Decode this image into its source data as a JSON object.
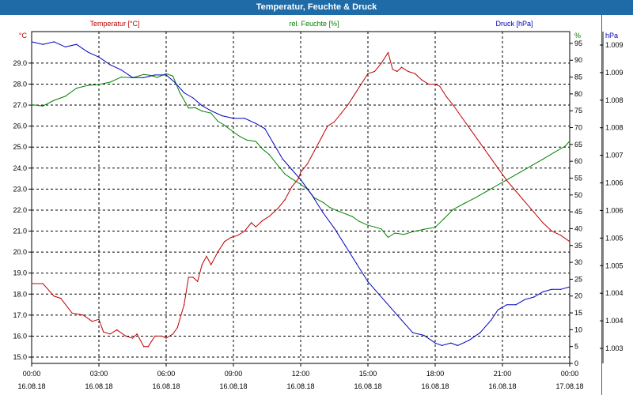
{
  "window": {
    "title": "Temperatur, Feuchte & Druck"
  },
  "colors": {
    "temperature": "#c00000",
    "humidity": "#008000",
    "pressure": "#0000c0",
    "title_bg": "#1e6ba8"
  },
  "chart_data": {
    "type": "line",
    "title": "Temperatur, Feuchte & Druck",
    "grid": true,
    "x_ticks": [
      {
        "time": "00:00",
        "date": "16.08.18"
      },
      {
        "time": "03:00",
        "date": "16.08.18"
      },
      {
        "time": "06:00",
        "date": "16.08.18"
      },
      {
        "time": "09:00",
        "date": "16.08.18"
      },
      {
        "time": "12:00",
        "date": "16.08.18"
      },
      {
        "time": "15:00",
        "date": "16.08.18"
      },
      {
        "time": "18:00",
        "date": "16.08.18"
      },
      {
        "time": "21:00",
        "date": "16.08.18"
      },
      {
        "time": "00:00",
        "date": "17.08.18"
      }
    ],
    "x_range_hours": [
      0,
      24
    ],
    "axes": {
      "temperature": {
        "label": "Temperatur [°C]",
        "unit": "°C",
        "ylim": [
          14.7,
          30.5
        ],
        "ticks": [
          "15.0",
          "16.0",
          "17.0",
          "18.0",
          "19.0",
          "20.0",
          "21.0",
          "22.0",
          "23.0",
          "24.0",
          "25.0",
          "26.0",
          "27.0",
          "28.0",
          "29.0"
        ]
      },
      "humidity": {
        "label": "rel. Feuchte [%]",
        "unit": "%",
        "ylim": [
          0,
          98.5
        ],
        "ticks": [
          "0",
          "5",
          "10",
          "15",
          "20",
          "25",
          "30",
          "35",
          "40",
          "45",
          "50",
          "55",
          "60",
          "65",
          "70",
          "75",
          "80",
          "85",
          "90",
          "95"
        ]
      },
      "pressure": {
        "label": "Druck [hPa]",
        "unit": "hPa",
        "ylim": [
          1002.7,
          1009.2
        ],
        "ticks": [
          "1.003",
          "1.004",
          "1.004",
          "1.005",
          "1.005",
          "1.006",
          "1.006",
          "1.007",
          "1.008",
          "1.008",
          "1.009",
          "1.009"
        ]
      }
    },
    "series": [
      {
        "name": "Temperatur [°C]",
        "axis": "temperature",
        "color": "#c00000",
        "points": [
          [
            0,
            18.5
          ],
          [
            0.5,
            18.5
          ],
          [
            1,
            17.9
          ],
          [
            1.3,
            17.8
          ],
          [
            1.8,
            17.1
          ],
          [
            2.3,
            17.0
          ],
          [
            2.7,
            16.7
          ],
          [
            3.0,
            16.8
          ],
          [
            3.2,
            16.2
          ],
          [
            3.5,
            16.1
          ],
          [
            3.8,
            16.3
          ],
          [
            4.2,
            16.0
          ],
          [
            4.5,
            15.9
          ],
          [
            4.7,
            16.1
          ],
          [
            5.0,
            15.5
          ],
          [
            5.2,
            15.5
          ],
          [
            5.5,
            16.0
          ],
          [
            5.8,
            16.0
          ],
          [
            6.0,
            15.9
          ],
          [
            6.3,
            16.1
          ],
          [
            6.5,
            16.4
          ],
          [
            6.8,
            17.5
          ],
          [
            7.0,
            18.8
          ],
          [
            7.2,
            18.8
          ],
          [
            7.4,
            18.6
          ],
          [
            7.6,
            19.4
          ],
          [
            7.8,
            19.8
          ],
          [
            8.0,
            19.4
          ],
          [
            8.3,
            20.0
          ],
          [
            8.6,
            20.5
          ],
          [
            8.9,
            20.7
          ],
          [
            9.2,
            20.8
          ],
          [
            9.5,
            21.0
          ],
          [
            9.8,
            21.4
          ],
          [
            10.0,
            21.2
          ],
          [
            10.3,
            21.5
          ],
          [
            10.6,
            21.7
          ],
          [
            10.8,
            21.9
          ],
          [
            11.0,
            22.1
          ],
          [
            11.3,
            22.5
          ],
          [
            11.6,
            23.1
          ],
          [
            11.9,
            23.5
          ],
          [
            12.0,
            23.8
          ],
          [
            12.3,
            24.2
          ],
          [
            12.6,
            24.8
          ],
          [
            12.9,
            25.4
          ],
          [
            13.2,
            26.0
          ],
          [
            13.5,
            26.2
          ],
          [
            13.8,
            26.6
          ],
          [
            14.1,
            27.0
          ],
          [
            14.4,
            27.5
          ],
          [
            14.7,
            28.0
          ],
          [
            15.0,
            28.5
          ],
          [
            15.3,
            28.6
          ],
          [
            15.6,
            29.0
          ],
          [
            15.9,
            29.5
          ],
          [
            16.1,
            28.7
          ],
          [
            16.3,
            28.6
          ],
          [
            16.5,
            28.8
          ],
          [
            16.8,
            28.6
          ],
          [
            17.1,
            28.5
          ],
          [
            17.4,
            28.2
          ],
          [
            17.7,
            28.0
          ],
          [
            18.0,
            28.0
          ],
          [
            18.2,
            27.9
          ],
          [
            18.5,
            27.4
          ],
          [
            18.8,
            27.0
          ],
          [
            19.2,
            26.4
          ],
          [
            19.6,
            25.8
          ],
          [
            20.0,
            25.2
          ],
          [
            20.4,
            24.6
          ],
          [
            20.8,
            24.0
          ],
          [
            21.2,
            23.4
          ],
          [
            21.6,
            22.9
          ],
          [
            22.0,
            22.4
          ],
          [
            22.4,
            21.9
          ],
          [
            22.8,
            21.4
          ],
          [
            23.2,
            21.0
          ],
          [
            23.6,
            20.8
          ],
          [
            24.0,
            20.5
          ]
        ]
      },
      {
        "name": "rel. Feuchte [%]",
        "axis": "humidity",
        "color": "#008000",
        "points": [
          [
            0,
            76.8
          ],
          [
            0.5,
            76.4
          ],
          [
            1.0,
            78.1
          ],
          [
            1.5,
            79.3
          ],
          [
            2.0,
            81.7
          ],
          [
            2.5,
            82.5
          ],
          [
            3.0,
            82.8
          ],
          [
            3.5,
            83.5
          ],
          [
            4.0,
            85.0
          ],
          [
            4.5,
            84.8
          ],
          [
            5.0,
            85.8
          ],
          [
            5.3,
            85.5
          ],
          [
            5.6,
            84.9
          ],
          [
            6.0,
            86.0
          ],
          [
            6.3,
            85.3
          ],
          [
            6.6,
            80.5
          ],
          [
            7.0,
            75.8
          ],
          [
            7.3,
            75.9
          ],
          [
            7.6,
            74.9
          ],
          [
            8.0,
            74.3
          ],
          [
            8.3,
            71.9
          ],
          [
            8.6,
            70.7
          ],
          [
            9.0,
            68.7
          ],
          [
            9.3,
            67.3
          ],
          [
            9.6,
            66.3
          ],
          [
            10.0,
            65.9
          ],
          [
            10.3,
            63.6
          ],
          [
            10.6,
            62.0
          ],
          [
            11.0,
            58.6
          ],
          [
            11.3,
            56.2
          ],
          [
            11.6,
            54.8
          ],
          [
            12.0,
            53.2
          ],
          [
            12.3,
            51.7
          ],
          [
            12.6,
            49.2
          ],
          [
            13.0,
            47.8
          ],
          [
            13.3,
            46.3
          ],
          [
            13.6,
            45.4
          ],
          [
            14.0,
            44.4
          ],
          [
            14.3,
            43.6
          ],
          [
            14.6,
            42.2
          ],
          [
            15.0,
            41.0
          ],
          [
            15.3,
            40.5
          ],
          [
            15.6,
            39.9
          ],
          [
            15.9,
            37.4
          ],
          [
            16.2,
            38.7
          ],
          [
            16.6,
            38.3
          ],
          [
            17.0,
            39.1
          ],
          [
            17.5,
            39.8
          ],
          [
            18.0,
            40.4
          ],
          [
            18.4,
            43.0
          ],
          [
            18.8,
            45.7
          ],
          [
            19.3,
            47.5
          ],
          [
            19.8,
            49.2
          ],
          [
            20.3,
            51.1
          ],
          [
            20.8,
            53.0
          ],
          [
            21.3,
            54.9
          ],
          [
            21.8,
            56.8
          ],
          [
            22.3,
            58.7
          ],
          [
            22.8,
            60.6
          ],
          [
            23.3,
            62.6
          ],
          [
            23.8,
            64.5
          ],
          [
            24.0,
            66.0
          ]
        ]
      },
      {
        "name": "Druck [hPa]",
        "axis": "pressure",
        "color": "#0000c0",
        "points": [
          [
            0,
            1009.0
          ],
          [
            0.5,
            1008.95
          ],
          [
            1.0,
            1009.0
          ],
          [
            1.5,
            1008.9
          ],
          [
            2.0,
            1008.95
          ],
          [
            2.5,
            1008.8
          ],
          [
            3.0,
            1008.7
          ],
          [
            3.5,
            1008.55
          ],
          [
            4.0,
            1008.45
          ],
          [
            4.5,
            1008.3
          ],
          [
            5.0,
            1008.3
          ],
          [
            5.5,
            1008.35
          ],
          [
            6.0,
            1008.35
          ],
          [
            6.4,
            1008.2
          ],
          [
            6.8,
            1008.0
          ],
          [
            7.2,
            1007.9
          ],
          [
            7.6,
            1007.75
          ],
          [
            8.0,
            1007.65
          ],
          [
            8.5,
            1007.55
          ],
          [
            9.0,
            1007.5
          ],
          [
            9.5,
            1007.5
          ],
          [
            10.0,
            1007.4
          ],
          [
            10.4,
            1007.3
          ],
          [
            10.8,
            1007.0
          ],
          [
            11.2,
            1006.7
          ],
          [
            11.6,
            1006.5
          ],
          [
            12.0,
            1006.3
          ],
          [
            12.5,
            1006.0
          ],
          [
            13.0,
            1005.65
          ],
          [
            13.5,
            1005.35
          ],
          [
            14.0,
            1005.0
          ],
          [
            14.5,
            1004.65
          ],
          [
            15.0,
            1004.3
          ],
          [
            15.5,
            1004.05
          ],
          [
            16.0,
            1003.8
          ],
          [
            16.5,
            1003.55
          ],
          [
            17.0,
            1003.3
          ],
          [
            17.5,
            1003.25
          ],
          [
            18.0,
            1003.1
          ],
          [
            18.3,
            1003.05
          ],
          [
            18.7,
            1003.1
          ],
          [
            19.0,
            1003.05
          ],
          [
            19.5,
            1003.15
          ],
          [
            20.0,
            1003.3
          ],
          [
            20.5,
            1003.55
          ],
          [
            20.8,
            1003.75
          ],
          [
            21.2,
            1003.85
          ],
          [
            21.6,
            1003.85
          ],
          [
            22.0,
            1003.95
          ],
          [
            22.4,
            1004.0
          ],
          [
            22.8,
            1004.1
          ],
          [
            23.2,
            1004.15
          ],
          [
            23.6,
            1004.15
          ],
          [
            24.0,
            1004.2
          ]
        ]
      }
    ]
  }
}
